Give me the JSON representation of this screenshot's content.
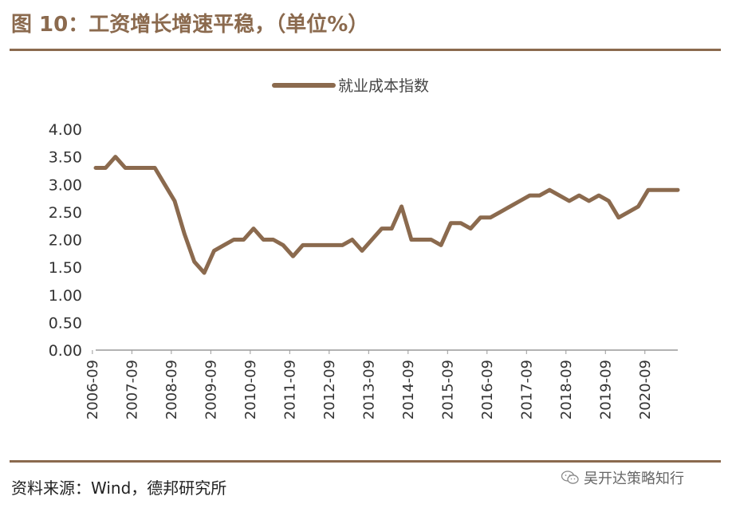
{
  "title": "图 10：工资增长增速平稳，（单位%）",
  "source": "资料来源：Wind，德邦研究所",
  "watermark": {
    "text": "吴开达策略知行",
    "icon": "wechat-icon"
  },
  "colors": {
    "accent": "#8B6A4E",
    "line": "#8B6A4E",
    "axis": "#999999"
  },
  "chart_data": {
    "type": "line",
    "legend": "top",
    "grid": false,
    "ylim": [
      0,
      4
    ],
    "yticks": [
      "0.00",
      "0.50",
      "1.00",
      "1.50",
      "2.00",
      "2.50",
      "3.00",
      "3.50",
      "4.00"
    ],
    "xlim": [
      2006.75,
      2021.5
    ],
    "xticks": [
      "2006-09",
      "2007-09",
      "2008-09",
      "2009-09",
      "2010-09",
      "2011-09",
      "2012-09",
      "2013-09",
      "2014-09",
      "2015-09",
      "2016-09",
      "2017-09",
      "2018-09",
      "2019-09",
      "2020-09"
    ],
    "series": [
      {
        "name": "就业成本指数",
        "x": [
          2006.75,
          2007.0,
          2007.25,
          2007.5,
          2007.75,
          2008.0,
          2008.25,
          2008.5,
          2008.75,
          2009.0,
          2009.25,
          2009.5,
          2009.75,
          2010.0,
          2010.25,
          2010.5,
          2010.75,
          2011.0,
          2011.25,
          2011.5,
          2011.75,
          2012.0,
          2012.25,
          2012.5,
          2012.75,
          2013.0,
          2013.25,
          2013.5,
          2013.75,
          2014.0,
          2014.25,
          2014.5,
          2014.75,
          2015.0,
          2015.25,
          2015.5,
          2015.75,
          2016.0,
          2016.25,
          2016.5,
          2016.75,
          2017.0,
          2017.25,
          2017.5,
          2017.75,
          2018.0,
          2018.25,
          2018.5,
          2018.75,
          2019.0,
          2019.25,
          2019.5,
          2019.75,
          2020.0,
          2020.25,
          2020.5,
          2020.75,
          2021.0,
          2021.25,
          2021.5
        ],
        "values": [
          3.3,
          3.3,
          3.5,
          3.3,
          3.3,
          3.3,
          3.3,
          3.0,
          2.7,
          2.1,
          1.6,
          1.4,
          1.8,
          1.9,
          2.0,
          2.0,
          2.2,
          2.0,
          2.0,
          1.9,
          1.7,
          1.9,
          1.9,
          1.9,
          1.9,
          1.9,
          2.0,
          1.8,
          2.0,
          2.2,
          2.2,
          2.6,
          2.0,
          2.0,
          2.0,
          1.9,
          2.3,
          2.3,
          2.2,
          2.4,
          2.4,
          2.5,
          2.6,
          2.7,
          2.8,
          2.8,
          2.9,
          2.8,
          2.7,
          2.8,
          2.7,
          2.8,
          2.7,
          2.4,
          2.5,
          2.6,
          2.9,
          2.9,
          2.9,
          2.9
        ]
      }
    ]
  }
}
